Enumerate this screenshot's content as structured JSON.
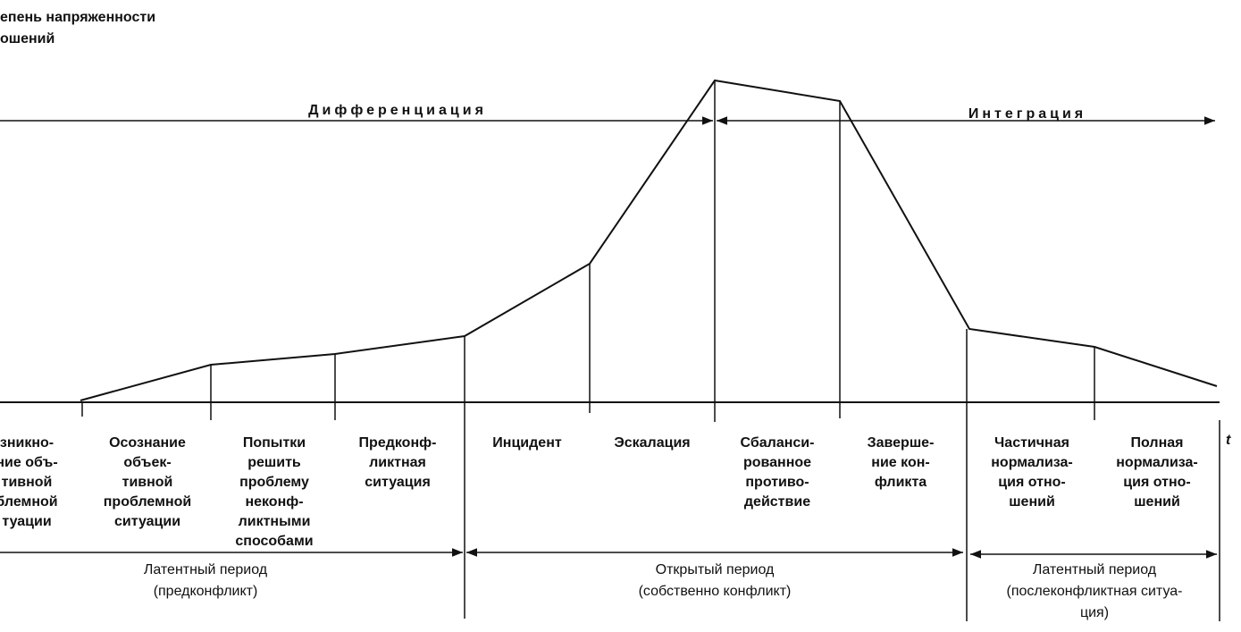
{
  "axis": {
    "y_label": [
      "епень напряженности",
      "ошений"
    ],
    "x_label": "t"
  },
  "phases": {
    "differentiation": "Дифференциация",
    "integration": "Интеграция"
  },
  "stages": [
    [
      "зникно-",
      "ние объ-",
      "тивной",
      "блемной",
      "туации"
    ],
    [
      "Осознание",
      "объек-",
      "тивной",
      "проблемной",
      "ситуации"
    ],
    [
      "Попытки",
      "решить",
      "проблему",
      "неконф-",
      "ликтными",
      "способами"
    ],
    [
      "Предконф-",
      "ликтная",
      "ситуация"
    ],
    [
      "Инцидент"
    ],
    [
      "Эскалация"
    ],
    [
      "Сбаланси-",
      "рованное",
      "противо-",
      "действие"
    ],
    [
      "Заверше-",
      "ние кон-",
      "фликта"
    ],
    [
      "Частичная",
      "нормализа-",
      "ция отно-",
      "шений"
    ],
    [
      "Полная",
      "нормализа-",
      "ция отно-",
      "шений"
    ]
  ],
  "periods": [
    [
      "Латентный период",
      "(предконфликт)"
    ],
    [
      "Открытый период",
      "(собственно конфликт)"
    ],
    [
      "Латентный период",
      "(послеконфликтная ситуа-",
      "ция)"
    ]
  ]
}
